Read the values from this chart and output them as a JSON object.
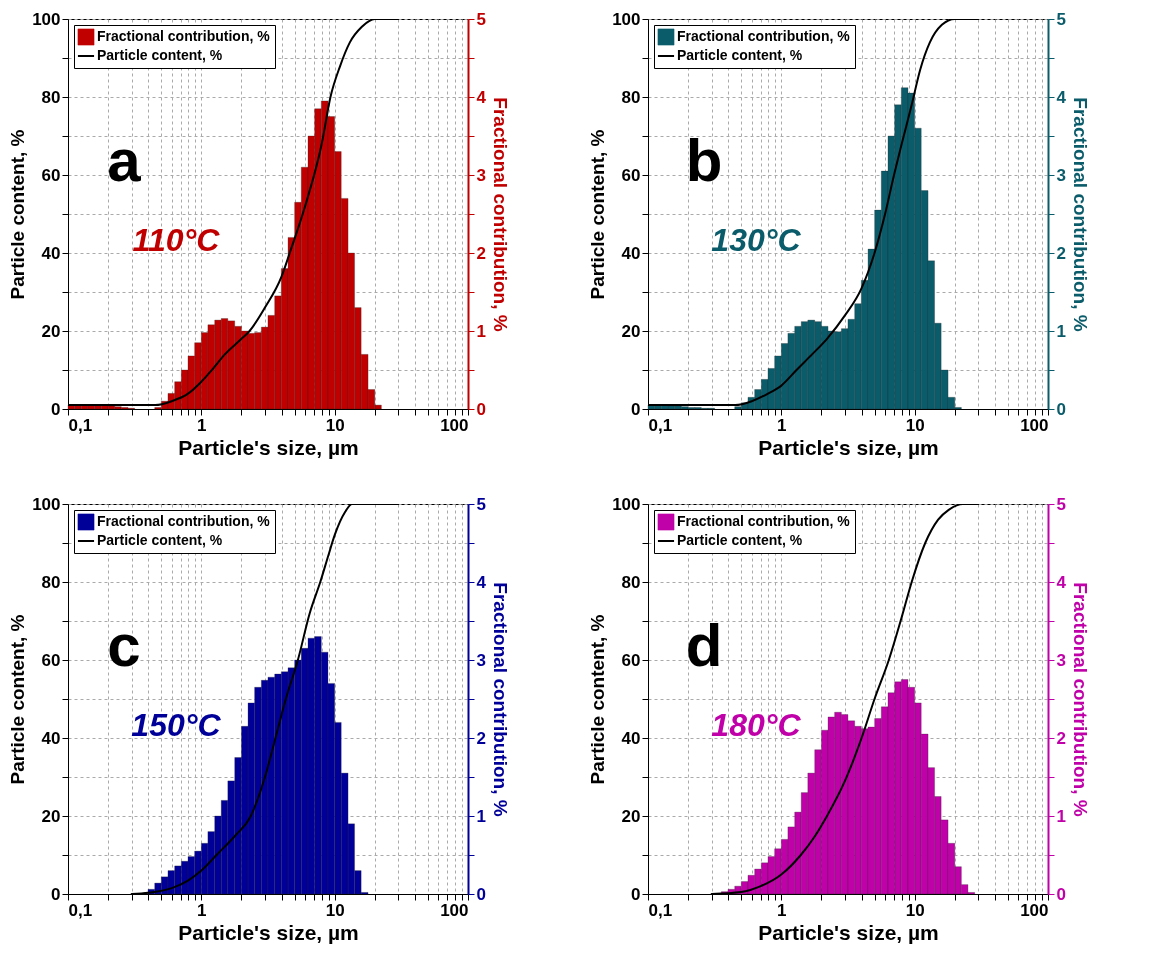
{
  "chart_data": [
    {
      "type": "histogram",
      "xlabel": "Particle's size, µm",
      "ylabel": "Particle content, %",
      "y2label": "Fractional contribution, %",
      "log": "x",
      "grid": true,
      "legend": "top left",
      "annotations": [
        "a",
        "110°C"
      ],
      "xlim": [
        0.1,
        100
      ],
      "xticks": [
        {
          "value": 0.1,
          "label": "0,1"
        },
        {
          "value": 0.2,
          "label": null
        },
        {
          "value": 0.3,
          "label": null
        },
        {
          "value": 0.4,
          "label": null
        },
        {
          "value": 0.5,
          "label": null
        },
        {
          "value": 0.6,
          "label": null
        },
        {
          "value": 0.7,
          "label": null
        },
        {
          "value": 0.8,
          "label": null
        },
        {
          "value": 0.9,
          "label": null
        },
        1,
        {
          "value": 2,
          "label": null
        },
        {
          "value": 3,
          "label": null
        },
        {
          "value": 4,
          "label": null
        },
        {
          "value": 5,
          "label": null
        },
        {
          "value": 6,
          "label": null
        },
        {
          "value": 7,
          "label": null
        },
        {
          "value": 8,
          "label": null
        },
        {
          "value": 9,
          "label": null
        },
        10,
        {
          "value": 20,
          "label": null
        },
        {
          "value": 30,
          "label": null
        },
        {
          "value": 40,
          "label": null
        },
        {
          "value": 50,
          "label": null
        },
        {
          "value": 60,
          "label": null
        },
        {
          "value": 70,
          "label": null
        },
        {
          "value": 80,
          "label": null
        },
        {
          "value": 90,
          "label": null
        },
        100
      ],
      "ylim": [
        0,
        100
      ],
      "yticks": [
        0,
        {
          "value": 10,
          "label": null
        },
        20,
        {
          "value": 30,
          "label": null
        },
        40,
        {
          "value": 50,
          "label": null
        },
        60,
        {
          "value": 70,
          "label": null
        },
        80,
        {
          "value": 90,
          "label": null
        },
        100
      ],
      "y2lim": [
        0,
        5
      ],
      "y2ticks": [
        0,
        {
          "value": 0.5,
          "label": null
        },
        1,
        {
          "value": 1.5,
          "label": null
        },
        2,
        {
          "value": 2.5,
          "label": null
        },
        3,
        {
          "value": 3.5,
          "label": null
        },
        4,
        {
          "value": 4.5,
          "label": null
        },
        5
      ],
      "series": [
        {
          "name": "Fractional contribution, %",
          "axis": "y2",
          "color": "#c00000",
          "bins": [
            0.1,
            0.112,
            0.126,
            0.141,
            0.158,
            0.178,
            0.2,
            0.224,
            0.251,
            0.282,
            0.316,
            0.355,
            0.398,
            0.447,
            0.501,
            0.562,
            0.631,
            0.708,
            0.794,
            0.891,
            1,
            1.12,
            1.26,
            1.41,
            1.58,
            1.78,
            2,
            2.24,
            2.51,
            2.82,
            3.16,
            3.55,
            3.98,
            4.47,
            5.01,
            5.62,
            6.31,
            7.08,
            7.94,
            8.91,
            10,
            11.2,
            12.6,
            14.1,
            15.8,
            17.8,
            20,
            22.4,
            25.1,
            28.2,
            31.6
          ],
          "values": [
            0.05,
            0.05,
            0.05,
            0.05,
            0.05,
            0.05,
            0.04,
            0.03,
            0.02,
            0.01,
            0,
            0,
            0,
            0.02,
            0.1,
            0.2,
            0.35,
            0.5,
            0.68,
            0.85,
            0.98,
            1.08,
            1.14,
            1.16,
            1.13,
            1.06,
            1.0,
            0.97,
            0.98,
            1.05,
            1.2,
            1.45,
            1.8,
            2.2,
            2.65,
            3.1,
            3.5,
            3.85,
            3.95,
            3.75,
            3.3,
            2.7,
            2.0,
            1.3,
            0.7,
            0.25,
            0.05,
            0,
            0,
            0
          ]
        },
        {
          "name": "Particle content, %",
          "type": "line",
          "color": "#000000",
          "x": [
            0.1,
            0.45,
            0.6,
            0.8,
            1,
            1.2,
            1.5,
            2,
            2.3,
            3,
            4,
            4.6,
            6,
            8,
            9.3,
            11,
            13,
            16,
            20,
            30
          ],
          "values": [
            1,
            1,
            2,
            4,
            7,
            10,
            14,
            18,
            20,
            26,
            34,
            40,
            52,
            68,
            80,
            88,
            94,
            98,
            100,
            100
          ]
        }
      ]
    },
    {
      "type": "histogram",
      "xlabel": "Particle's size, µm",
      "ylabel": "Particle content, %",
      "y2label": "Fractional contribution, %",
      "log": "x",
      "grid": true,
      "legend": "top left",
      "annotations": [
        "b",
        "130°C"
      ],
      "xlim": [
        0.1,
        100
      ],
      "xticks": [
        {
          "value": 0.1,
          "label": "0,1"
        },
        {
          "value": 0.2,
          "label": null
        },
        {
          "value": 0.3,
          "label": null
        },
        {
          "value": 0.4,
          "label": null
        },
        {
          "value": 0.5,
          "label": null
        },
        {
          "value": 0.6,
          "label": null
        },
        {
          "value": 0.7,
          "label": null
        },
        {
          "value": 0.8,
          "label": null
        },
        {
          "value": 0.9,
          "label": null
        },
        1,
        {
          "value": 2,
          "label": null
        },
        {
          "value": 3,
          "label": null
        },
        {
          "value": 4,
          "label": null
        },
        {
          "value": 5,
          "label": null
        },
        {
          "value": 6,
          "label": null
        },
        {
          "value": 7,
          "label": null
        },
        {
          "value": 8,
          "label": null
        },
        {
          "value": 9,
          "label": null
        },
        10,
        {
          "value": 20,
          "label": null
        },
        {
          "value": 30,
          "label": null
        },
        {
          "value": 40,
          "label": null
        },
        {
          "value": 50,
          "label": null
        },
        {
          "value": 60,
          "label": null
        },
        {
          "value": 70,
          "label": null
        },
        {
          "value": 80,
          "label": null
        },
        {
          "value": 90,
          "label": null
        },
        100
      ],
      "ylim": [
        0,
        100
      ],
      "yticks": [
        0,
        {
          "value": 10,
          "label": null
        },
        20,
        {
          "value": 30,
          "label": null
        },
        40,
        {
          "value": 50,
          "label": null
        },
        60,
        {
          "value": 70,
          "label": null
        },
        80,
        {
          "value": 90,
          "label": null
        },
        100
      ],
      "y2lim": [
        0,
        5
      ],
      "y2ticks": [
        0,
        {
          "value": 0.5,
          "label": null
        },
        1,
        {
          "value": 1.5,
          "label": null
        },
        2,
        {
          "value": 2.5,
          "label": null
        },
        3,
        {
          "value": 3.5,
          "label": null
        },
        4,
        {
          "value": 4.5,
          "label": null
        },
        5
      ],
      "series": [
        {
          "name": "Fractional contribution, %",
          "axis": "y2",
          "color": "#0b5c6b",
          "bins": [
            0.1,
            0.112,
            0.126,
            0.141,
            0.158,
            0.178,
            0.2,
            0.224,
            0.251,
            0.282,
            0.316,
            0.355,
            0.398,
            0.447,
            0.501,
            0.562,
            0.631,
            0.708,
            0.794,
            0.891,
            1,
            1.12,
            1.26,
            1.41,
            1.58,
            1.78,
            2,
            2.24,
            2.51,
            2.82,
            3.16,
            3.55,
            3.98,
            4.47,
            5.01,
            5.62,
            6.31,
            7.08,
            7.94,
            8.91,
            10,
            11.2,
            12.6,
            14.1,
            15.8,
            17.8,
            20,
            22.4,
            25.1,
            28.2,
            31.6
          ],
          "values": [
            0.05,
            0.05,
            0.05,
            0.04,
            0.04,
            0.03,
            0.02,
            0.02,
            0.01,
            0.01,
            0,
            0,
            0,
            0.03,
            0.08,
            0.15,
            0.25,
            0.38,
            0.52,
            0.68,
            0.84,
            0.97,
            1.06,
            1.12,
            1.14,
            1.12,
            1.06,
            1.0,
            0.99,
            1.03,
            1.15,
            1.35,
            1.65,
            2.05,
            2.55,
            3.05,
            3.5,
            3.9,
            4.12,
            4.05,
            3.6,
            2.8,
            1.9,
            1.1,
            0.5,
            0.15,
            0.02,
            0,
            0,
            0
          ]
        },
        {
          "name": "Particle content, %",
          "type": "line",
          "color": "#000000",
          "x": [
            0.1,
            0.45,
            0.6,
            0.8,
            1,
            1.3,
            1.7,
            2.2,
            3,
            4,
            5,
            6,
            7,
            8,
            9.5,
            11,
            13,
            16,
            20,
            30
          ],
          "values": [
            1,
            1,
            2,
            4,
            6,
            10,
            14,
            18,
            24,
            31,
            40,
            50,
            60,
            68,
            78,
            87,
            94,
            98.5,
            100,
            100
          ]
        }
      ]
    },
    {
      "type": "histogram",
      "xlabel": "Particle's size, µm",
      "ylabel": "Particle content, %",
      "y2label": "Fractional contribution, %",
      "log": "x",
      "grid": true,
      "legend": "top left",
      "annotations": [
        "c",
        "150°C"
      ],
      "xlim": [
        0.1,
        100
      ],
      "xticks": [
        {
          "value": 0.1,
          "label": "0,1"
        },
        {
          "value": 0.2,
          "label": null
        },
        {
          "value": 0.3,
          "label": null
        },
        {
          "value": 0.4,
          "label": null
        },
        {
          "value": 0.5,
          "label": null
        },
        {
          "value": 0.6,
          "label": null
        },
        {
          "value": 0.7,
          "label": null
        },
        {
          "value": 0.8,
          "label": null
        },
        {
          "value": 0.9,
          "label": null
        },
        1,
        {
          "value": 2,
          "label": null
        },
        {
          "value": 3,
          "label": null
        },
        {
          "value": 4,
          "label": null
        },
        {
          "value": 5,
          "label": null
        },
        {
          "value": 6,
          "label": null
        },
        {
          "value": 7,
          "label": null
        },
        {
          "value": 8,
          "label": null
        },
        {
          "value": 9,
          "label": null
        },
        10,
        {
          "value": 20,
          "label": null
        },
        {
          "value": 30,
          "label": null
        },
        {
          "value": 40,
          "label": null
        },
        {
          "value": 50,
          "label": null
        },
        {
          "value": 60,
          "label": null
        },
        {
          "value": 70,
          "label": null
        },
        {
          "value": 80,
          "label": null
        },
        {
          "value": 90,
          "label": null
        },
        100
      ],
      "ylim": [
        0,
        100
      ],
      "yticks": [
        0,
        {
          "value": 10,
          "label": null
        },
        20,
        {
          "value": 30,
          "label": null
        },
        40,
        {
          "value": 50,
          "label": null
        },
        60,
        {
          "value": 70,
          "label": null
        },
        80,
        {
          "value": 90,
          "label": null
        },
        100
      ],
      "y2lim": [
        0,
        5
      ],
      "y2ticks": [
        0,
        {
          "value": 0.5,
          "label": null
        },
        1,
        {
          "value": 1.5,
          "label": null
        },
        2,
        {
          "value": 2.5,
          "label": null
        },
        3,
        {
          "value": 3.5,
          "label": null
        },
        4,
        {
          "value": 4.5,
          "label": null
        },
        5
      ],
      "series": [
        {
          "name": "Fractional contribution, %",
          "axis": "y2",
          "color": "#000099",
          "bins": [
            0.1,
            0.112,
            0.126,
            0.141,
            0.158,
            0.178,
            0.2,
            0.224,
            0.251,
            0.282,
            0.316,
            0.355,
            0.398,
            0.447,
            0.501,
            0.562,
            0.631,
            0.708,
            0.794,
            0.891,
            1,
            1.12,
            1.26,
            1.41,
            1.58,
            1.78,
            2,
            2.24,
            2.51,
            2.82,
            3.16,
            3.55,
            3.98,
            4.47,
            5.01,
            5.62,
            6.31,
            7.08,
            7.94,
            8.91,
            10,
            11.2,
            12.6,
            14.1,
            15.8,
            17.8,
            20,
            22.4,
            25.1,
            28.2,
            31.6
          ],
          "values": [
            0,
            0,
            0,
            0,
            0,
            0,
            0,
            0,
            0,
            0,
            0,
            null,
            0.06,
            0.14,
            0.22,
            0.3,
            0.36,
            0.42,
            0.48,
            0.55,
            0.65,
            0.8,
            1.0,
            1.2,
            1.45,
            1.75,
            2.15,
            2.45,
            2.65,
            2.74,
            2.78,
            2.82,
            2.85,
            2.9,
            3.0,
            3.15,
            3.28,
            3.3,
            3.1,
            2.7,
            2.2,
            1.55,
            0.9,
            0.3,
            0.02,
            0,
            0,
            0,
            0,
            0
          ]
        },
        {
          "name": "Particle content, %",
          "type": "line",
          "color": "#000000",
          "x": [
            0.3,
            0.4,
            0.6,
            0.8,
            1,
            1.3,
            1.8,
            2.35,
            3,
            3.6,
            4.3,
            5.3,
            6.5,
            7.8,
            9,
            10,
            12,
            13.5,
            30
          ],
          "values": [
            0,
            0.3,
            1.5,
            3.5,
            6,
            10,
            15,
            20,
            30,
            40,
            50,
            60,
            72,
            80,
            87,
            92,
            98,
            100,
            100
          ]
        }
      ]
    },
    {
      "type": "histogram",
      "xlabel": "Particle's size, µm",
      "ylabel": "Particle content, %",
      "y2label": "Fractional contribution, %",
      "log": "x",
      "grid": true,
      "legend": "top left",
      "annotations": [
        "d",
        "180°C"
      ],
      "xlim": [
        0.1,
        100
      ],
      "xticks": [
        {
          "value": 0.1,
          "label": "0,1"
        },
        {
          "value": 0.2,
          "label": null
        },
        {
          "value": 0.3,
          "label": null
        },
        {
          "value": 0.4,
          "label": null
        },
        {
          "value": 0.5,
          "label": null
        },
        {
          "value": 0.6,
          "label": null
        },
        {
          "value": 0.7,
          "label": null
        },
        {
          "value": 0.8,
          "label": null
        },
        {
          "value": 0.9,
          "label": null
        },
        1,
        {
          "value": 2,
          "label": null
        },
        {
          "value": 3,
          "label": null
        },
        {
          "value": 4,
          "label": null
        },
        {
          "value": 5,
          "label": null
        },
        {
          "value": 6,
          "label": null
        },
        {
          "value": 7,
          "label": null
        },
        {
          "value": 8,
          "label": null
        },
        {
          "value": 9,
          "label": null
        },
        10,
        {
          "value": 20,
          "label": null
        },
        {
          "value": 30,
          "label": null
        },
        {
          "value": 40,
          "label": null
        },
        {
          "value": 50,
          "label": null
        },
        {
          "value": 60,
          "label": null
        },
        {
          "value": 70,
          "label": null
        },
        {
          "value": 80,
          "label": null
        },
        {
          "value": 90,
          "label": null
        },
        100
      ],
      "ylim": [
        0,
        100
      ],
      "yticks": [
        0,
        {
          "value": 10,
          "label": null
        },
        20,
        {
          "value": 30,
          "label": null
        },
        40,
        {
          "value": 50,
          "label": null
        },
        60,
        {
          "value": 70,
          "label": null
        },
        80,
        {
          "value": 90,
          "label": null
        },
        100
      ],
      "y2lim": [
        0,
        5
      ],
      "y2ticks": [
        0,
        {
          "value": 0.5,
          "label": null
        },
        1,
        {
          "value": 1.5,
          "label": null
        },
        2,
        {
          "value": 2.5,
          "label": null
        },
        3,
        {
          "value": 3.5,
          "label": null
        },
        4,
        {
          "value": 4.5,
          "label": null
        },
        5
      ],
      "series": [
        {
          "name": "Fractional contribution, %",
          "axis": "y2",
          "color": "#c000a8",
          "bins": [
            0.1,
            0.112,
            0.126,
            0.141,
            0.158,
            0.178,
            0.2,
            0.224,
            0.251,
            0.282,
            0.316,
            0.355,
            0.398,
            0.447,
            0.501,
            0.562,
            0.631,
            0.708,
            0.794,
            0.891,
            1,
            1.12,
            1.26,
            1.41,
            1.58,
            1.78,
            2,
            2.24,
            2.51,
            2.82,
            3.16,
            3.55,
            3.98,
            4.47,
            5.01,
            5.62,
            6.31,
            7.08,
            7.94,
            8.91,
            10,
            11.2,
            12.6,
            14.1,
            15.8,
            17.8,
            20,
            22.4,
            25.1,
            28.2,
            31.6
          ],
          "values": [
            0,
            0,
            0,
            0,
            0,
            0,
            0,
            0,
            0,
            0,
            null,
            0.03,
            0.06,
            0.1,
            0.16,
            0.24,
            0.32,
            0.4,
            0.48,
            0.58,
            0.7,
            0.86,
            1.05,
            1.3,
            1.55,
            1.85,
            2.1,
            2.27,
            2.33,
            2.3,
            2.22,
            2.15,
            2.12,
            2.14,
            2.25,
            2.4,
            2.58,
            2.72,
            2.75,
            2.65,
            2.45,
            2.05,
            1.62,
            1.25,
            0.95,
            0.65,
            0.35,
            0.12,
            0.02,
            0
          ]
        },
        {
          "name": "Particle content, %",
          "type": "line",
          "color": "#000000",
          "x": [
            0.3,
            0.5,
            0.7,
            1,
            1.4,
            1.8,
            2.2,
            3,
            4,
            5,
            6.4,
            8,
            9.5,
            12,
            15,
            18,
            23,
            30
          ],
          "values": [
            0,
            0.5,
            2,
            5,
            10,
            15,
            20,
            29,
            40,
            50,
            60,
            71,
            80,
            90,
            96,
            98.5,
            100,
            100
          ]
        }
      ]
    }
  ]
}
